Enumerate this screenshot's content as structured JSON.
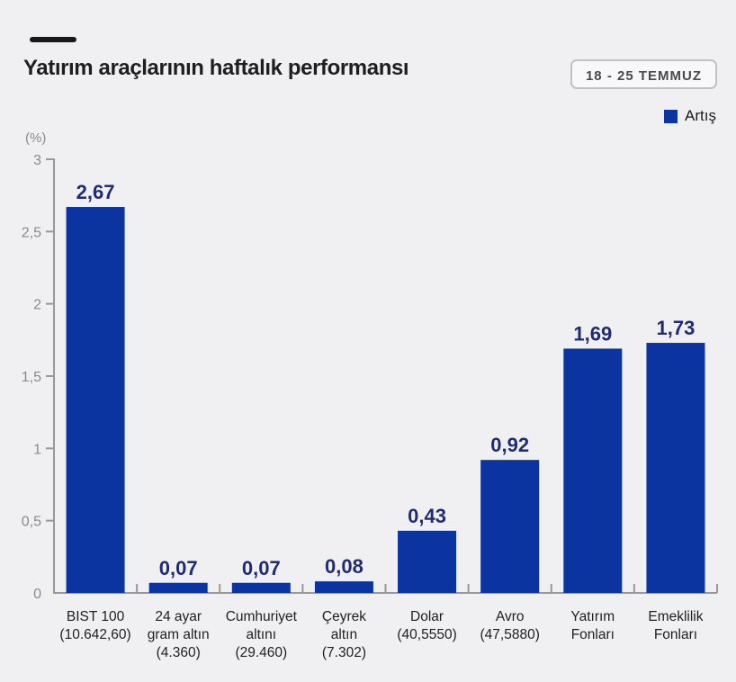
{
  "header": {
    "title": "Yatırım araçlarının haftalık performansı",
    "date_badge": "18 - 25 TEMMUZ"
  },
  "legend": {
    "items": [
      {
        "label": "Artış",
        "color": "#0B34A0"
      }
    ]
  },
  "chart_data": {
    "type": "bar",
    "title": "Yatırım araçlarının haftalık performansı",
    "subtitle": "18 - 25 TEMMUZ",
    "xlabel": "",
    "ylabel": "(%)",
    "ylim": [
      0,
      3
    ],
    "yticks": [
      0,
      0.5,
      1,
      1.5,
      2,
      2.5,
      3
    ],
    "ytick_labels": [
      "0",
      "0,5",
      "1",
      "1,5",
      "2",
      "2,5",
      "3"
    ],
    "grid": false,
    "legend_position": "top-right",
    "bar_color": "#0B34A0",
    "value_label_color": "#1F2C73",
    "axis_color": "#98989c",
    "tick_label_color": "#8a8a8e",
    "category_label_color": "#1f1f23",
    "categories": [
      "BIST 100 (10.642,60)",
      "24 ayar gram altın (4.360)",
      "Cumhuriyet altını (29.460)",
      "Çeyrek altın (7.302)",
      "Dolar (40,5550)",
      "Avro (47,5880)",
      "Yatırım Fonları",
      "Emeklilik Fonları"
    ],
    "category_label_lines": [
      [
        "BIST 100",
        "(10.642,60)"
      ],
      [
        "24 ayar",
        "gram altın",
        "(4.360)"
      ],
      [
        "Cumhuriyet",
        "altını",
        "(29.460)"
      ],
      [
        "Çeyrek",
        "altın",
        "(7.302)"
      ],
      [
        "Dolar",
        "(40,5550)"
      ],
      [
        "Avro",
        "(47,5880)"
      ],
      [
        "Yatırım",
        "Fonları"
      ],
      [
        "Emeklilik",
        "Fonları"
      ]
    ],
    "series": [
      {
        "name": "Artış",
        "values": [
          2.67,
          0.07,
          0.07,
          0.08,
          0.43,
          0.92,
          1.69,
          1.73
        ]
      }
    ],
    "values": [
      2.67,
      0.07,
      0.07,
      0.08,
      0.43,
      0.92,
      1.69,
      1.73
    ],
    "value_labels": [
      "2,67",
      "0,07",
      "0,07",
      "0,08",
      "0,43",
      "0,92",
      "1,69",
      "1,73"
    ]
  }
}
